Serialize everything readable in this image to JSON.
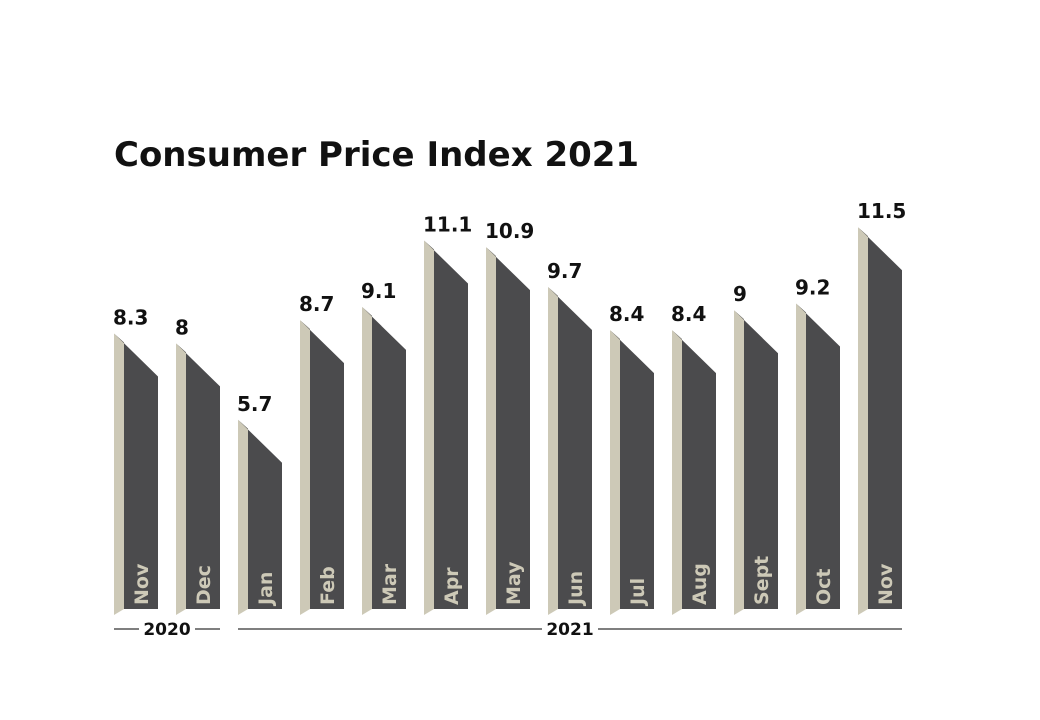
{
  "chart_data": {
    "type": "bar",
    "title": "Consumer Price Index 2021",
    "categories": [
      "Nov",
      "Dec",
      "Jan",
      "Feb",
      "Mar",
      "Apr",
      "May",
      "Jun",
      "Jul",
      "Aug",
      "Sept",
      "Oct",
      "Nov"
    ],
    "values": [
      8.3,
      8,
      5.7,
      8.7,
      9.1,
      11.1,
      10.9,
      9.7,
      8.4,
      8.4,
      9,
      9.2,
      11.5
    ],
    "value_labels": [
      "8.3",
      "8",
      "5.7",
      "8.7",
      "9.1",
      "11.1",
      "10.9",
      "9.7",
      "8.4",
      "8.4",
      "9",
      "9.2",
      "11.5"
    ],
    "year_groups": [
      {
        "label": "2020",
        "count": 2
      },
      {
        "label": "2021",
        "count": 11
      }
    ],
    "ylim": [
      0,
      11.5
    ],
    "grid": false,
    "legend": "none",
    "colors": {
      "bar_front": "#4b4b4d",
      "bar_side": "#cdc9b7",
      "month_label": "#cdc9b7",
      "text": "#111111",
      "rule": "#555555"
    }
  }
}
